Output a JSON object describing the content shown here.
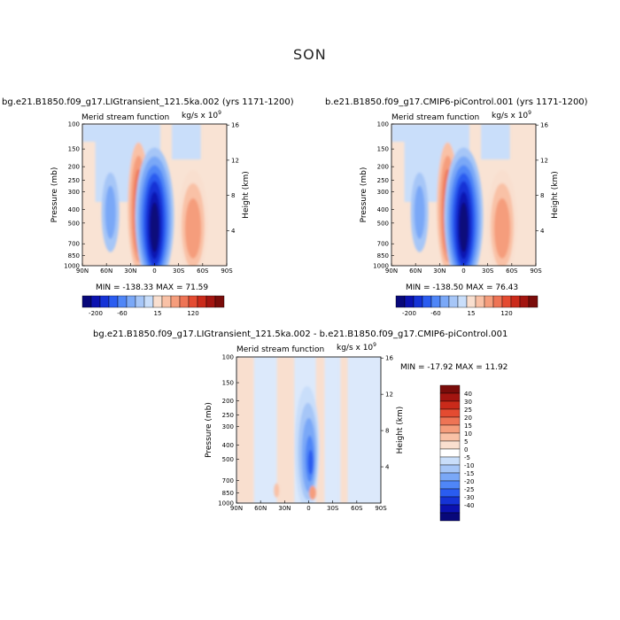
{
  "figure": {
    "title": "SON"
  },
  "colors": {
    "scale": [
      "#08087a",
      "#0b12b0",
      "#1533d6",
      "#2a5cf0",
      "#4f86f7",
      "#7aa8f7",
      "#a6c6f7",
      "#c9defa",
      "#f9dfcf",
      "#f9c1a6",
      "#f59d7c",
      "#ee7455",
      "#e44b31",
      "#ca2a1a",
      "#a31510",
      "#7a0c0a"
    ]
  },
  "panels": [
    {
      "id": "p1",
      "title": "bg.e21.B1850.f09_g17.LIGtransient_121.5ka.002 (yrs 1171-1200)",
      "subtitle": "Merid stream function",
      "units": "kg/s x 10",
      "units_exp": "9",
      "stats": "MIN = -138.33   MAX =  71.59"
    },
    {
      "id": "p2",
      "title": "b.e21.B1850.f09_g17.CMIP6-piControl.001 (yrs 1171-1200)",
      "subtitle": "Merid stream function",
      "units": "kg/s x 10",
      "units_exp": "9",
      "stats": "MIN = -138.50   MAX =  76.43"
    },
    {
      "id": "p3",
      "title": "bg.e21.B1850.f09_g17.LIGtransient_121.5ka.002 - b.e21.B1850.f09_g17.CMIP6-piControl.001",
      "subtitle": "Merid stream function",
      "units": "kg/s x 10",
      "units_exp": "9",
      "stats": "MIN = -17.92   MAX =  11.92"
    }
  ],
  "chart_data": [
    {
      "type": "heatmap",
      "panel": "p1",
      "xlabel": "",
      "ylabel": "Pressure (mb)",
      "y2label": "Height (km)",
      "x_ticks": [
        "90N",
        "60N",
        "30N",
        "0",
        "30S",
        "60S",
        "90S"
      ],
      "y_ticks": [
        100,
        150,
        200,
        250,
        300,
        400,
        500,
        700,
        850,
        1000
      ],
      "y2_ticks": [
        4,
        8,
        12,
        16
      ],
      "y_scale": "log",
      "ylim": [
        1000,
        100
      ],
      "xlim": [
        90,
        -90
      ],
      "min": -138.33,
      "max": 71.59,
      "colorbar": {
        "labels": [
          -200,
          -60,
          15,
          120
        ]
      },
      "features": [
        {
          "lat": 22,
          "p": 400,
          "sign": "positive",
          "level": 10
        },
        {
          "lat": 0,
          "p": 450,
          "sign": "negative",
          "level": 0
        },
        {
          "lat": -45,
          "p": 500,
          "sign": "positive",
          "level": 6
        },
        {
          "lat": 55,
          "p": 420,
          "sign": "negative",
          "level": 5
        }
      ]
    },
    {
      "type": "heatmap",
      "panel": "p2",
      "xlabel": "",
      "ylabel": "Pressure (mb)",
      "y2label": "Height (km)",
      "x_ticks": [
        "90N",
        "60N",
        "30N",
        "0",
        "30S",
        "60S",
        "90S"
      ],
      "y_ticks": [
        100,
        150,
        200,
        250,
        300,
        400,
        500,
        700,
        850,
        1000
      ],
      "y2_ticks": [
        4,
        8,
        12,
        16
      ],
      "y_scale": "log",
      "ylim": [
        1000,
        100
      ],
      "xlim": [
        90,
        -90
      ],
      "min": -138.5,
      "max": 76.43,
      "colorbar": {
        "labels": [
          -200,
          -60,
          15,
          120
        ]
      },
      "features": [
        {
          "lat": 22,
          "p": 400,
          "sign": "positive",
          "level": 10
        },
        {
          "lat": 0,
          "p": 450,
          "sign": "negative",
          "level": 0
        },
        {
          "lat": -45,
          "p": 500,
          "sign": "positive",
          "level": 6
        },
        {
          "lat": 55,
          "p": 420,
          "sign": "negative",
          "level": 5
        }
      ]
    },
    {
      "type": "heatmap",
      "panel": "p3",
      "xlabel": "",
      "ylabel": "Pressure (mb)",
      "y2label": "Height (km)",
      "x_ticks": [
        "90N",
        "60N",
        "30N",
        "0",
        "30S",
        "60S",
        "90S"
      ],
      "y_ticks": [
        100,
        150,
        200,
        250,
        300,
        400,
        500,
        700,
        850,
        1000
      ],
      "y2_ticks": [
        4,
        8,
        12,
        16
      ],
      "y_scale": "log",
      "ylim": [
        1000,
        100
      ],
      "xlim": [
        90,
        -90
      ],
      "min": -17.92,
      "max": 11.92,
      "colorbar": {
        "labels": [
          40,
          30,
          25,
          20,
          15,
          10,
          5,
          0,
          -5,
          -10,
          -15,
          -20,
          -25,
          -30,
          -40
        ]
      },
      "features": [
        {
          "lat": 2,
          "p": 400,
          "sign": "negative",
          "level": 3
        },
        {
          "lat": -28,
          "p": 300,
          "sign": "positive",
          "level": 9
        },
        {
          "lat": -60,
          "p": 500,
          "sign": "positive",
          "level": 9
        }
      ]
    }
  ]
}
